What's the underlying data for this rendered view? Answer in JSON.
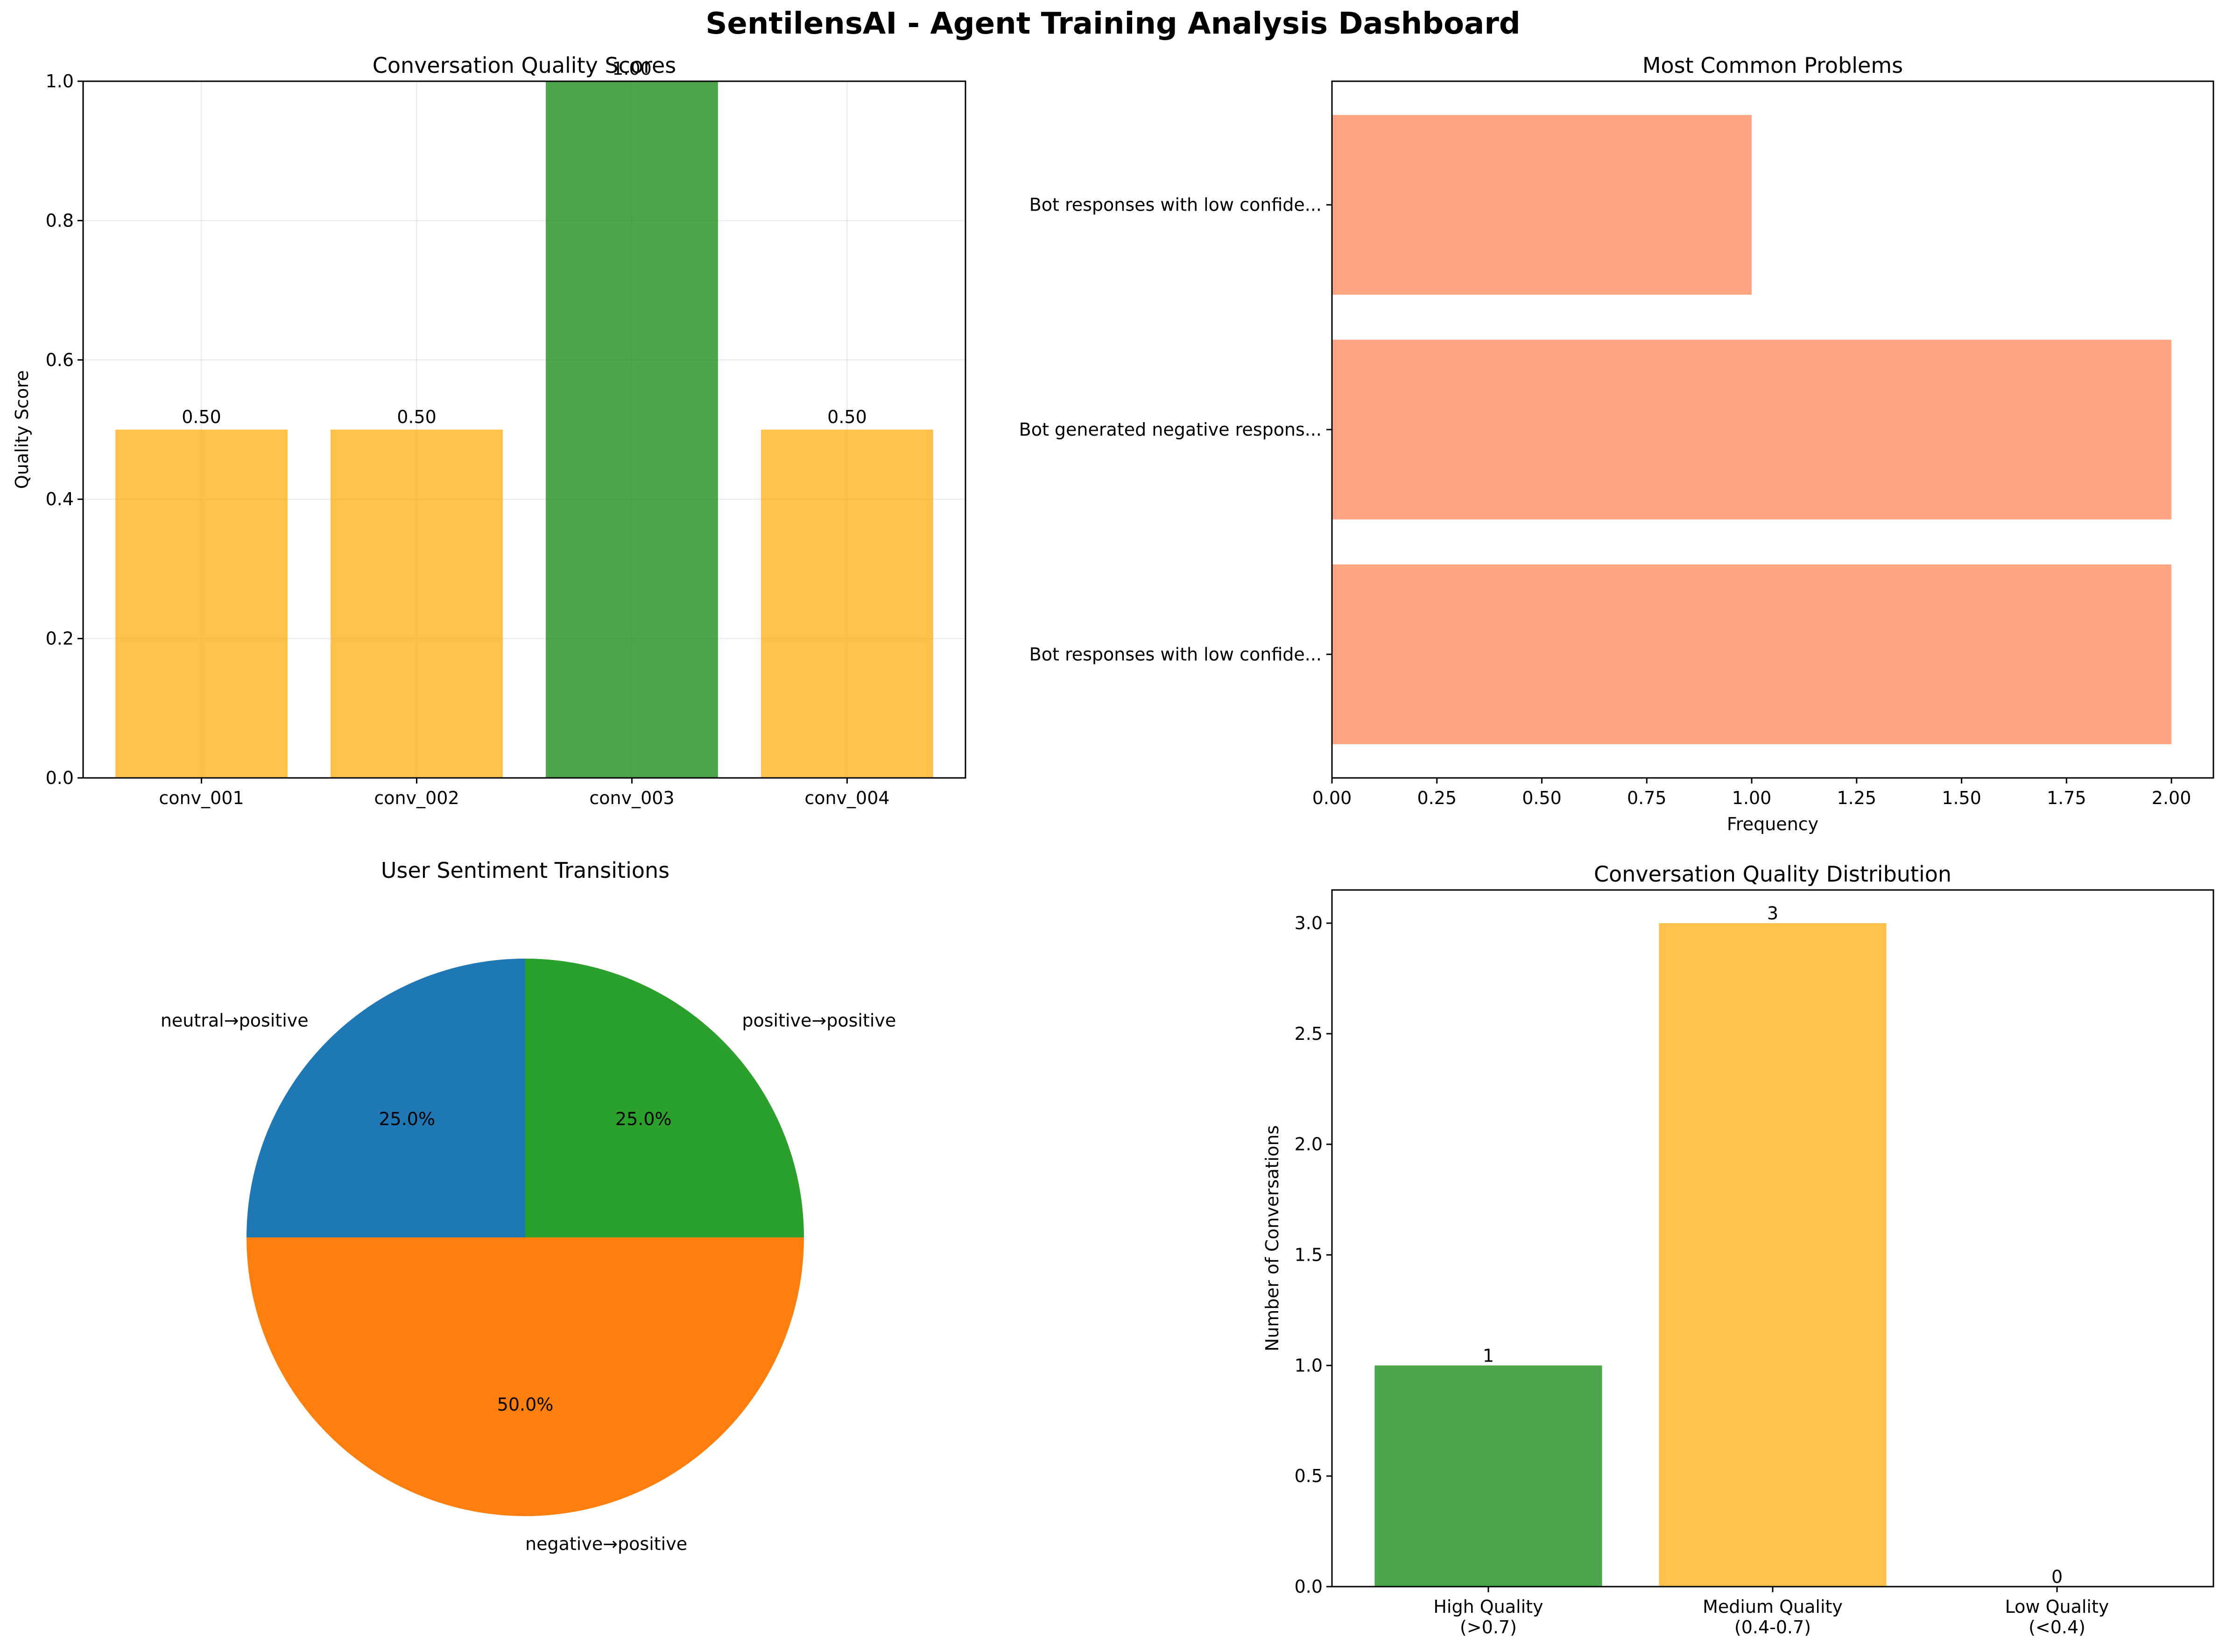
{
  "figure_title": "SentilensAI - Agent Training Analysis Dashboard",
  "chart_data": [
    {
      "id": "quality_scores",
      "type": "bar",
      "title": "Conversation Quality Scores",
      "xlabel": "",
      "ylabel": "Quality Score",
      "categories": [
        "conv_001",
        "conv_002",
        "conv_003",
        "conv_004"
      ],
      "values": [
        0.5,
        0.5,
        1.0,
        0.5
      ],
      "value_labels": [
        "0.50",
        "0.50",
        "1.00",
        "0.50"
      ],
      "colors": [
        "#FFA500",
        "#FFA500",
        "#008000",
        "#FFA500"
      ],
      "ylim": [
        0,
        1.0
      ],
      "yticks": [
        "0.0",
        "0.2",
        "0.4",
        "0.6",
        "0.8",
        "1.0"
      ],
      "grid": true
    },
    {
      "id": "common_problems",
      "type": "barh",
      "title": "Most Common Problems",
      "xlabel": "Frequency",
      "ylabel": "",
      "categories": [
        "Bot responses with low confide...",
        "Bot generated negative respons...",
        "Bot responses with low confide..."
      ],
      "values": [
        2,
        2,
        1
      ],
      "color": "#FF7F50",
      "xlim": [
        0,
        2.1
      ],
      "xticks": [
        "0.00",
        "0.25",
        "0.50",
        "0.75",
        "1.00",
        "1.25",
        "1.50",
        "1.75",
        "2.00"
      ],
      "grid": false
    },
    {
      "id": "sentiment_transitions",
      "type": "pie",
      "title": "User Sentiment Transitions",
      "labels": [
        "neutral→positive",
        "negative→positive",
        "positive→positive"
      ],
      "values": [
        25.0,
        50.0,
        25.0
      ],
      "pct_labels": [
        "25.0%",
        "50.0%",
        "25.0%"
      ],
      "colors": [
        "#1f77b4",
        "#ff7f0e",
        "#2ca02c"
      ]
    },
    {
      "id": "quality_distribution",
      "type": "bar",
      "title": "Conversation Quality Distribution",
      "xlabel": "",
      "ylabel": "Number of Conversations",
      "categories": [
        [
          "High Quality",
          "(>0.7)"
        ],
        [
          "Medium Quality",
          "(0.4-0.7)"
        ],
        [
          "Low Quality",
          "(<0.4)"
        ]
      ],
      "values": [
        1,
        3,
        0
      ],
      "value_labels": [
        "1",
        "3",
        "0"
      ],
      "colors": [
        "#008000",
        "#FFA500",
        "#FF0000"
      ],
      "ylim": [
        0,
        3.15
      ],
      "yticks": [
        "0.0",
        "0.5",
        "1.0",
        "1.5",
        "2.0",
        "2.5",
        "3.0"
      ],
      "grid": false
    }
  ]
}
